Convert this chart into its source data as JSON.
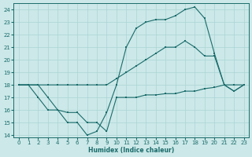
{
  "xlabel": "Humidex (Indice chaleur)",
  "background_color": "#cce8e8",
  "line_color": "#1a6b6b",
  "grid_color": "#aad4d4",
  "xlim": [
    -0.5,
    23.5
  ],
  "ylim": [
    13.8,
    24.5
  ],
  "yticks": [
    14,
    15,
    16,
    17,
    18,
    19,
    20,
    21,
    22,
    23,
    24
  ],
  "xticks": [
    0,
    1,
    2,
    3,
    4,
    5,
    6,
    7,
    8,
    9,
    10,
    11,
    12,
    13,
    14,
    15,
    16,
    17,
    18,
    19,
    20,
    21,
    22,
    23
  ],
  "line1_x": [
    0,
    1,
    2,
    3,
    4,
    5,
    6,
    7,
    8,
    9,
    10,
    11,
    12,
    13,
    14,
    15,
    16,
    17,
    18,
    19,
    20,
    21,
    22,
    23
  ],
  "line1_y": [
    18,
    18,
    17,
    16,
    16,
    15.8,
    15.8,
    15,
    15,
    14.3,
    17,
    17,
    17,
    17.2,
    17.2,
    17.3,
    17.3,
    17.5,
    17.5,
    17.7,
    17.8,
    18,
    18,
    18
  ],
  "line2_x": [
    0,
    1,
    2,
    3,
    4,
    5,
    6,
    7,
    8,
    9,
    10,
    11,
    12,
    13,
    14,
    15,
    16,
    17,
    18,
    19,
    20,
    21,
    22,
    23
  ],
  "line2_y": [
    18,
    18,
    18,
    17,
    16,
    15,
    15,
    14,
    14.3,
    15.8,
    18,
    21,
    22.5,
    23,
    23.2,
    23.2,
    23.5,
    24,
    24.2,
    23.3,
    20.5,
    18,
    17.5,
    18
  ],
  "line3_x": [
    0,
    1,
    2,
    3,
    4,
    5,
    6,
    7,
    8,
    9,
    10,
    11,
    12,
    13,
    14,
    15,
    16,
    17,
    18,
    19,
    20,
    21,
    22,
    23
  ],
  "line3_y": [
    18,
    18,
    18,
    18,
    18,
    18,
    18,
    18,
    18,
    18,
    18.5,
    19,
    19.5,
    20,
    20.5,
    21,
    21,
    21.5,
    21,
    20.3,
    20.3,
    18,
    17.5,
    18
  ]
}
